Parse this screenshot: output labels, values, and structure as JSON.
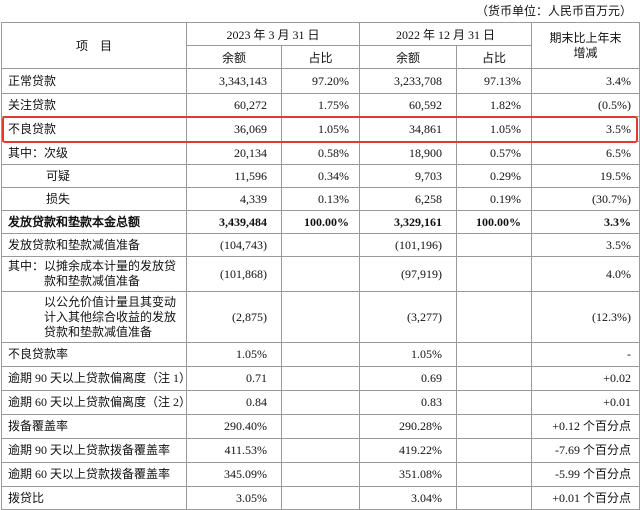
{
  "note": "（货币单位：人民币百万元）",
  "header": {
    "item": "项　目",
    "period_2023": "2023 年 3 月 31 日",
    "period_2022": "2022 年 12 月 31 日",
    "change": "期末比上年末增减",
    "balance": "余额",
    "ratio": "占比"
  },
  "table": {
    "rows": [
      {
        "label": "正常贷款",
        "value_2023": "3,343,143",
        "ratio_2023": "97.20%",
        "value_2022": "3,233,708",
        "ratio_2022": "97.13%",
        "change": "3.4%"
      },
      {
        "label": "关注贷款",
        "value_2023": "60,272",
        "ratio_2023": "1.75%",
        "value_2022": "60,592",
        "ratio_2022": "1.82%",
        "change": "(0.5%)"
      },
      {
        "label": "不良贷款",
        "value_2023": "36,069",
        "ratio_2023": "1.05%",
        "value_2022": "34,861",
        "ratio_2022": "1.05%",
        "change": "3.5%",
        "highlighted": true
      },
      {
        "label": "其中：次级",
        "value_2023": "20,134",
        "ratio_2023": "0.58%",
        "value_2022": "18,900",
        "ratio_2022": "0.57%",
        "change": "6.5%"
      },
      {
        "label": "可疑",
        "value_2023": "11,596",
        "ratio_2023": "0.34%",
        "value_2022": "9,703",
        "ratio_2022": "0.29%",
        "change": "19.5%"
      },
      {
        "label": "损失",
        "value_2023": "4,339",
        "ratio_2023": "0.13%",
        "value_2022": "6,258",
        "ratio_2022": "0.19%",
        "change": "(30.7%)"
      },
      {
        "label": "发放贷款和垫款本金总额",
        "value_2023": "3,439,484",
        "ratio_2023": "100.00%",
        "value_2022": "3,329,161",
        "ratio_2022": "100.00%",
        "change": "3.3%",
        "bold": true
      },
      {
        "label": "发放贷款和垫款减值准备",
        "value_2023": "(104,743)",
        "value_2022": "(101,196)",
        "change": "3.5%"
      },
      {
        "label": "其中：以摊余成本计量的发放贷款和垫款减值准备",
        "value_2023": "(101,868)",
        "value_2022": "(97,919)",
        "change": "4.0%"
      },
      {
        "label": "以公允价值计量且其变动计入其他综合收益的发放贷款和垫款减值准备",
        "value_2023": "(2,875)",
        "value_2022": "(3,277)",
        "change": "(12.3%)"
      },
      {
        "label": "不良贷款率",
        "value_2023": "1.05%",
        "value_2022": "1.05%",
        "change": "-"
      },
      {
        "label": "逾期 90 天以上贷款偏离度（注 1）",
        "value_2023": "0.71",
        "value_2022": "0.69",
        "change": "+0.02"
      },
      {
        "label": "逾期 60 天以上贷款偏离度（注 2）",
        "value_2023": "0.84",
        "value_2022": "0.83",
        "change": "+0.01"
      },
      {
        "label": "拨备覆盖率",
        "value_2023": "290.40%",
        "value_2022": "290.28%",
        "change": "+0.12 个百分点"
      },
      {
        "label": "逾期 90 天以上贷款拨备覆盖率",
        "value_2023": "411.53%",
        "value_2022": "419.22%",
        "change": "-7.69 个百分点"
      },
      {
        "label": "逾期 60 天以上贷款拨备覆盖率",
        "value_2023": "345.09%",
        "value_2022": "351.08%",
        "change": "-5.99 个百分点"
      },
      {
        "label": "拨贷比",
        "value_2023": "3.05%",
        "value_2022": "3.04%",
        "change": "+0.01 个百分点"
      }
    ]
  }
}
